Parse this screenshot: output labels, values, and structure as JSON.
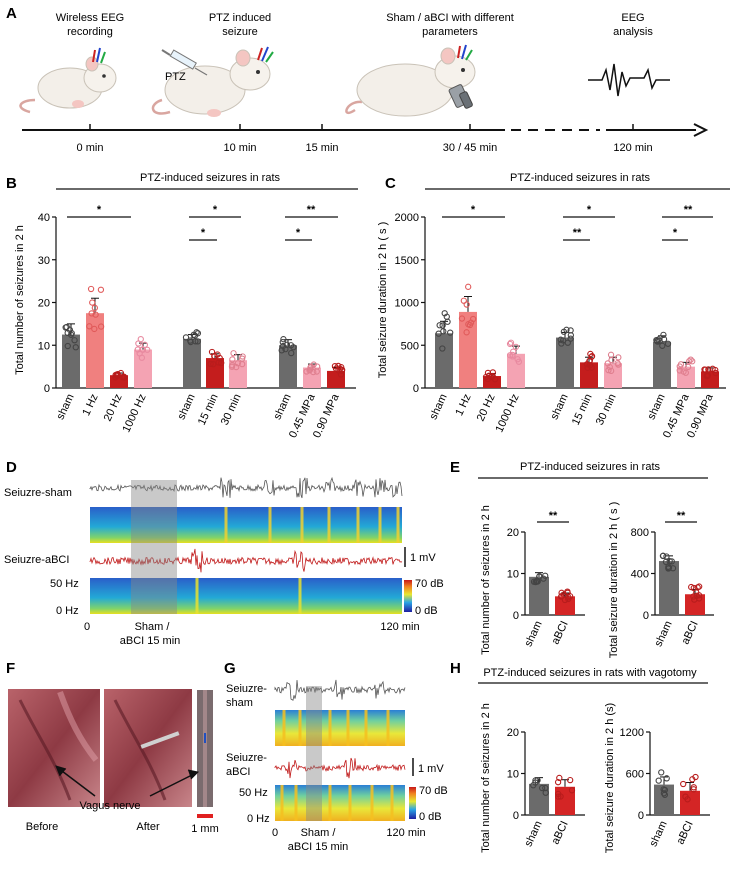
{
  "panels": {
    "A": "A",
    "B": "B",
    "C": "C",
    "D": "D",
    "E": "E",
    "F": "F",
    "G": "G",
    "H": "H"
  },
  "panelA": {
    "steps": [
      "Wireless EEG\nrecording",
      "PTZ induced\nseizure",
      "Sham / aBCI with different\nparameters",
      "EEG\nanalysis"
    ],
    "drug_label": "PTZ",
    "timeline": [
      "0 min",
      "10 min",
      "15 min",
      "30 / 45 min",
      "120 min"
    ]
  },
  "panelB": {
    "header": "PTZ-induced seizures in rats",
    "ylabel": "Total number of seizures in 2 h",
    "categories": [
      "sham",
      "1 Hz",
      "20 Hz",
      "1000 Hz",
      "sham",
      "15 min",
      "30 min",
      "sham",
      "0.45 MPa",
      "0.90 MPa"
    ],
    "sig": [
      "*",
      "*",
      "*",
      "*",
      "**"
    ]
  },
  "panelC": {
    "header": "PTZ-induced seizures in rats",
    "ylabel": "Total seizure duration in 2 h ( s )",
    "categories": [
      "sham",
      "1 Hz",
      "20 Hz",
      "1000 Hz",
      "sham",
      "15 min",
      "30 min",
      "sham",
      "0.45 MPa",
      "0.90 MPa"
    ],
    "sig": [
      "*",
      "**",
      "*",
      "*",
      "**"
    ]
  },
  "panelD": {
    "trace1": "Seiuzre-sham",
    "trace2": "Seiuzre-aBCI",
    "freq_top": "50 Hz",
    "freq_bottom": "0 Hz",
    "scale": "1 mV",
    "db_top": "70 dB",
    "db_bottom": "0 dB",
    "t_start": "0",
    "t_end": "120 min",
    "window": "Sham /\naBCI 15 min"
  },
  "panelE": {
    "header": "PTZ-induced seizures in rats",
    "left_ylabel": "Total number of seizures in 2 h",
    "right_ylabel": "Total seizure duration in 2 h ( s )",
    "categories": [
      "sham",
      "aBCI"
    ],
    "sig": [
      "**",
      "**"
    ]
  },
  "panelF": {
    "nerve": "Vagus nerve",
    "before": "Before",
    "after": "After",
    "scalebar": "1 mm"
  },
  "panelG": {
    "trace1": "Seiuzre-\nsham",
    "trace2": "Seiuzre-\naBCI",
    "freq_top": "50 Hz",
    "freq_bottom": "0 Hz",
    "scale": "1 mV",
    "db_top": "70 dB",
    "db_bottom": "0 dB",
    "t_start": "0",
    "t_end": "120 min",
    "window": "Sham /\naBCI 15 min"
  },
  "panelH": {
    "header": "PTZ-induced seizures in rats with vagotomy",
    "left_ylabel": "Total number of seizures in 2 h",
    "right_ylabel": "Total seizure duration in 2 h (s)",
    "categories": [
      "sham",
      "aBCI"
    ]
  },
  "colors": {
    "sham": "#6b6b6b",
    "red_light": "#f0807f",
    "red_dark": "#c41d1d",
    "pink": "#f4a3b3",
    "red_main": "#d42525"
  },
  "chart_data": [
    {
      "type": "bar",
      "id": "B",
      "title": "PTZ-induced seizures in rats",
      "ylabel": "Total number of seizures in 2 h",
      "ylim": [
        0,
        40
      ],
      "yticks": [
        0,
        10,
        20,
        30,
        40
      ],
      "categories": [
        "sham",
        "1 Hz",
        "20 Hz",
        "1000 Hz",
        "sham",
        "15 min",
        "30 min",
        "sham",
        "0.45 MPa",
        "0.90 MPa"
      ],
      "values": [
        12.5,
        17.5,
        3,
        9,
        11.5,
        7,
        6.5,
        10,
        4.8,
        4
      ],
      "errors": [
        2.5,
        3.5,
        0.5,
        1.5,
        1.0,
        1.0,
        1.3,
        1.3,
        0.8,
        0.8
      ]
    },
    {
      "type": "bar",
      "id": "C",
      "title": "PTZ-induced seizures in rats",
      "ylabel": "Total seizure duration in 2 h ( s )",
      "ylim": [
        0,
        2000
      ],
      "yticks": [
        0,
        500,
        1000,
        1500,
        2000
      ],
      "categories": [
        "sham",
        "1 Hz",
        "20 Hz",
        "1000 Hz",
        "sham",
        "15 min",
        "30 min",
        "sham",
        "0.45 MPa",
        "0.90 MPa"
      ],
      "values": [
        640,
        890,
        140,
        400,
        590,
        300,
        290,
        540,
        250,
        195
      ],
      "errors": [
        140,
        180,
        30,
        90,
        60,
        60,
        70,
        70,
        50,
        40
      ]
    },
    {
      "type": "bar",
      "id": "E-left",
      "ylabel": "Total number of seizures in 2 h",
      "ylim": [
        0,
        20
      ],
      "yticks": [
        0,
        10,
        20
      ],
      "categories": [
        "sham",
        "aBCI"
      ],
      "values": [
        9.2,
        4.5
      ],
      "errors": [
        1.0,
        0.8
      ]
    },
    {
      "type": "bar",
      "id": "E-right",
      "ylabel": "Total seizure duration in 2 h ( s )",
      "ylim": [
        0,
        800
      ],
      "yticks": [
        0,
        400,
        800
      ],
      "categories": [
        "sham",
        "aBCI"
      ],
      "values": [
        520,
        200
      ],
      "errors": [
        50,
        45
      ]
    },
    {
      "type": "bar",
      "id": "H-left",
      "ylabel": "Total number of seizures in 2 h",
      "ylim": [
        0,
        20
      ],
      "yticks": [
        0,
        10,
        20
      ],
      "categories": [
        "sham",
        "aBCI"
      ],
      "values": [
        7.5,
        6.8
      ],
      "errors": [
        1.5,
        1.7
      ]
    },
    {
      "type": "bar",
      "id": "H-right",
      "ylabel": "Total seizure duration in 2 h (s)",
      "ylim": [
        0,
        1200
      ],
      "yticks": [
        0,
        600,
        1200
      ],
      "categories": [
        "sham",
        "aBCI"
      ],
      "values": [
        440,
        350
      ],
      "errors": [
        110,
        120
      ]
    }
  ]
}
